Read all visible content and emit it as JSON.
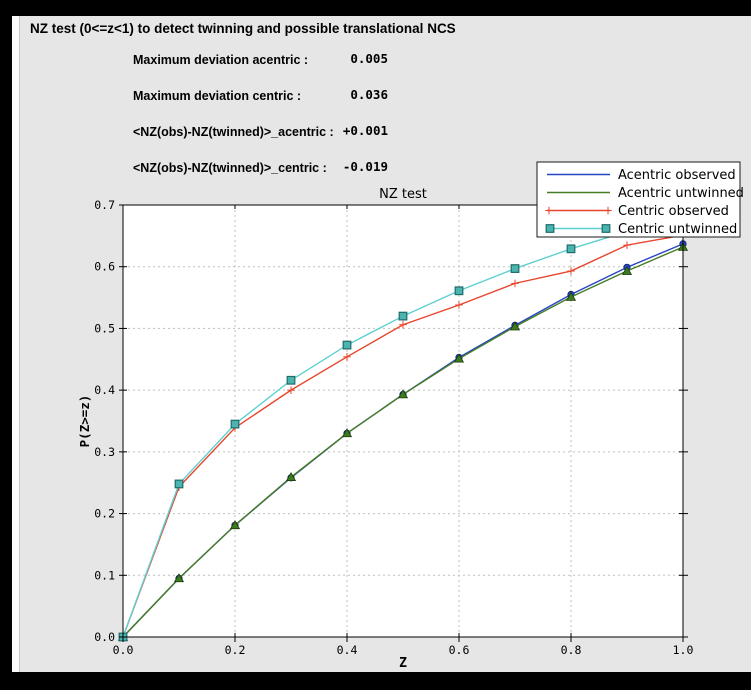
{
  "header": {
    "title": "NZ test (0<=z<1) to detect twinning and possible translational NCS"
  },
  "stats": {
    "rows": [
      {
        "label": "Maximum deviation acentric :",
        "value": "0.005"
      },
      {
        "label": "Maximum deviation centric :",
        "value": "0.036"
      },
      {
        "label": "<NZ(obs)-NZ(twinned)>_acentric :",
        "value": "+0.001"
      },
      {
        "label": "<NZ(obs)-NZ(twinned)>_centric :",
        "value": "-0.019"
      }
    ]
  },
  "colors": {
    "panel_bg": "#e6e6e6",
    "plot_bg": "#ffffff",
    "grid": "#bfbfbf",
    "spine": "#000000",
    "legend_bg": "#ffffff",
    "legend_border": "#1a1a1a"
  },
  "chart_data": {
    "type": "line",
    "title": "NZ test",
    "xlabel": "Z",
    "ylabel": "P(Z>=z)",
    "xlim": [
      0.0,
      1.0
    ],
    "ylim": [
      0.0,
      0.7
    ],
    "x_ticks": [
      0.0,
      0.2,
      0.4,
      0.6,
      0.8,
      1.0
    ],
    "y_ticks": [
      0.0,
      0.1,
      0.2,
      0.3,
      0.4,
      0.5,
      0.6,
      0.7
    ],
    "grid": true,
    "legend_position": "upper right",
    "x": [
      0.0,
      0.1,
      0.2,
      0.3,
      0.4,
      0.5,
      0.6,
      0.7,
      0.8,
      0.9,
      1.0
    ],
    "series": [
      {
        "name": "Acentric observed",
        "color": "#2746c4",
        "marker": "circle",
        "marker_fill": "#2746c4",
        "marker_edge": "#0e1e6e",
        "values": [
          0.0,
          0.095,
          0.181,
          0.258,
          0.33,
          0.393,
          0.453,
          0.505,
          0.555,
          0.599,
          0.637
        ]
      },
      {
        "name": "Acentric untwinned",
        "color": "#467c24",
        "marker": "triangle",
        "marker_fill": "#3c7c1e",
        "marker_edge": "#1c3a0a",
        "values": [
          0.0,
          0.095,
          0.181,
          0.259,
          0.33,
          0.393,
          0.451,
          0.503,
          0.551,
          0.593,
          0.632
        ]
      },
      {
        "name": "Centric observed",
        "color": "#e8452c",
        "marker": "plus",
        "marker_fill": "#e8452c",
        "marker_edge": "#e8452c",
        "values": [
          0.0,
          0.243,
          0.339,
          0.4,
          0.454,
          0.506,
          0.538,
          0.573,
          0.593,
          0.635,
          0.651
        ]
      },
      {
        "name": "Centric untwinned",
        "color": "#5ed0d0",
        "marker": "square",
        "marker_fill": "#4cb4af",
        "marker_edge": "#1e6b6b",
        "values": [
          0.0,
          0.248,
          0.345,
          0.416,
          0.473,
          0.52,
          0.561,
          0.597,
          0.629,
          0.657,
          0.683
        ]
      }
    ]
  }
}
